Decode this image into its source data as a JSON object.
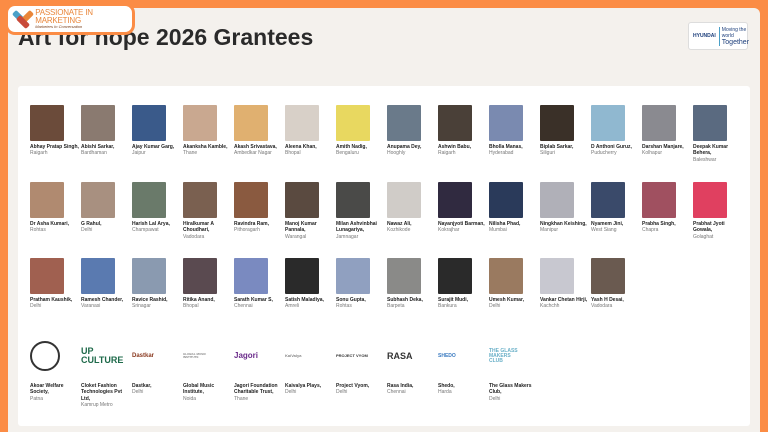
{
  "logo": {
    "text": "PASSIONATE IN MARKETING",
    "tagline": "Marketers In Conversation"
  },
  "title": "Art for hope 2026 Grantees",
  "partner": {
    "brand": "HYUNDAI",
    "line1": "Moving the world",
    "line2": "Together"
  },
  "rows": [
    [
      {
        "name": "Abhay Pratap Singh,",
        "city": "Raigarh",
        "color": "#6b4b3a"
      },
      {
        "name": "Abishi Sarkar,",
        "city": "Bardhaman",
        "color": "#8a7a70"
      },
      {
        "name": "Ajay Kumar Garg,",
        "city": "Jaipur",
        "color": "#3a5a8a"
      },
      {
        "name": "Akanksha Kamble,",
        "city": "Thane",
        "color": "#c9a890"
      },
      {
        "name": "Akash Srivastava,",
        "city": "Ambedkar Nagar",
        "color": "#e0b070"
      },
      {
        "name": "Aleena Khan,",
        "city": "Bhopal",
        "color": "#d8d0c8"
      },
      {
        "name": "Amith Nadig,",
        "city": "Bengaluru",
        "color": "#e8d860"
      },
      {
        "name": "Anupama Dey,",
        "city": "Hooghly",
        "color": "#6a7a8a"
      },
      {
        "name": "Ashwin Babu,",
        "city": "Raigarh",
        "color": "#4a4038"
      },
      {
        "name": "Bholla Manas,",
        "city": "Hyderabad",
        "color": "#7a8ab0"
      },
      {
        "name": "Biplab Sarkar,",
        "city": "Siliguri",
        "color": "#3a3028"
      },
      {
        "name": "D Anthoni Guruz,",
        "city": "Puducherry",
        "color": "#90b8d0"
      },
      {
        "name": "Darshan Manjare,",
        "city": "Kolhapur",
        "color": "#8a8a90"
      },
      {
        "name": "Deepak Kumar Behera,",
        "city": "Baleshwar",
        "color": "#5a6a80"
      }
    ],
    [
      {
        "name": "Dr Asha Kumari,",
        "city": "Rohtas",
        "color": "#b08a70"
      },
      {
        "name": "G Rahul,",
        "city": "Delhi",
        "color": "#a89080"
      },
      {
        "name": "Harish Lal Arya,",
        "city": "Champawat",
        "color": "#6a7a6a"
      },
      {
        "name": "Hiralkumar A Choudhari,",
        "city": "Vadodara",
        "color": "#7a6050"
      },
      {
        "name": "Ravindra Ram,",
        "city": "Pithoragarh",
        "color": "#8a5a40"
      },
      {
        "name": "Manoj Kumar Pannala,",
        "city": "Warangal",
        "color": "#5a4a40"
      },
      {
        "name": "Milan Ashvinbhai Lunagariya,",
        "city": "Jamnagar",
        "color": "#4a4a48"
      },
      {
        "name": "Nawaz Ali,",
        "city": "Kozhikode",
        "color": "#d0ccc8"
      },
      {
        "name": "Nayanjyoti Barman,",
        "city": "Kokrajhar",
        "color": "#302a40"
      },
      {
        "name": "Nilisha Phad,",
        "city": "Mumbai",
        "color": "#2a3a5a"
      },
      {
        "name": "Ningkhan Keishing,",
        "city": "Manipur",
        "color": "#b0b0b8"
      },
      {
        "name": "Nyamem Jini,",
        "city": "West Siang",
        "color": "#3a4a6a"
      },
      {
        "name": "Prabha Singh,",
        "city": "Chapra",
        "color": "#a05060"
      },
      {
        "name": "Prabhat Jyoti Gowala,",
        "city": "Golaghat",
        "color": "#e04060"
      }
    ],
    [
      {
        "name": "Pratham Kaushik,",
        "city": "Delhi",
        "color": "#a06050"
      },
      {
        "name": "Ramesh Chander,",
        "city": "Varanasi",
        "color": "#5a7ab0"
      },
      {
        "name": "Ravice Rashid,",
        "city": "Srinagar",
        "color": "#8a9ab0"
      },
      {
        "name": "Ritika Anand,",
        "city": "Bhopal",
        "color": "#5a4a50"
      },
      {
        "name": "Sarath Kumar S,",
        "city": "Chennai",
        "color": "#7a8ac0"
      },
      {
        "name": "Satish Maladiya,",
        "city": "Amreli",
        "color": "#2a2a2a"
      },
      {
        "name": "Sonu Gupta,",
        "city": "Rohtas",
        "color": "#90a0c0"
      },
      {
        "name": "Subhash Deka,",
        "city": "Barpeta",
        "color": "#8a8a88"
      },
      {
        "name": "Surajit Mudi,",
        "city": "Bankura",
        "color": "#2a2a2a"
      },
      {
        "name": "Umesh Kumar,",
        "city": "Delhi",
        "color": "#9a7a60"
      },
      {
        "name": "Vankar Chetan Hirji,",
        "city": "Kachchh",
        "color": "#c8c8d0"
      },
      {
        "name": "Yash H Desai,",
        "city": "Vadodara",
        "color": "#6a5a50"
      }
    ]
  ],
  "orgs": [
    {
      "name": "Akoar Welfare Society,",
      "city": "Patna",
      "logo": ""
    },
    {
      "name": "Cloket Fashion Technologies Pvt Ltd,",
      "city": "Kamrup Metro",
      "logo": "UP CULTURE"
    },
    {
      "name": "Dastkar,",
      "city": "Delhi",
      "logo": "Dastkar"
    },
    {
      "name": "Global Music Institute,",
      "city": "Noida",
      "logo": "GLOBAL MUSIC INSTITUTE"
    },
    {
      "name": "Jagori Foundation Charitable Trust,",
      "city": "Thane",
      "logo": "Jagori"
    },
    {
      "name": "Kaivalya Plays,",
      "city": "Delhi",
      "logo": "KaiValya"
    },
    {
      "name": "Project Vyom,",
      "city": "Delhi",
      "logo": "PROJECT VYOM"
    },
    {
      "name": "Rasa India,",
      "city": "Chennai",
      "logo": "RASA"
    },
    {
      "name": "Shedo,",
      "city": "Harda",
      "logo": "SHEDO"
    },
    {
      "name": "The Glass Makers Club,",
      "city": "Delhi",
      "logo": "THE GLASS MAKERS CLUB"
    }
  ]
}
